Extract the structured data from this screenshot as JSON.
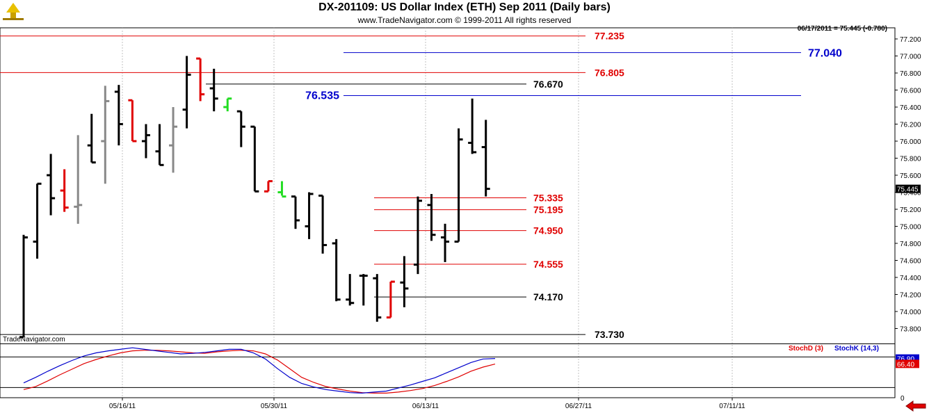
{
  "header": {
    "title": "DX-201109:  US Dollar Index (ETH) Sep 2011  (Daily bars)",
    "copyright": "www.TradeNavigator.com © 1999-2011 All rights reserved",
    "quote": "06/17/2011 = 75.445 (-0.780)"
  },
  "watermark": "TradeNavigator.com",
  "indicator_legend": {
    "stoch_d": "StochD (3)",
    "stoch_k": "StochK (14,3)"
  },
  "colors": {
    "bar_black": "#000000",
    "bar_red": "#e00000",
    "bar_green": "#22dd22",
    "bar_gray": "#888888",
    "level_red": "#e00000",
    "level_blue": "#0000cc",
    "level_black": "#000000",
    "stoch_d": "#e00000",
    "stoch_k": "#0000cc",
    "price_tag_bg": "#000000"
  },
  "chart_data": [
    {
      "type": "ohlc",
      "title": "DX-201109:  US Dollar Index (ETH) Sep 2011  (Daily bars)",
      "ylim": [
        73.6,
        77.3
      ],
      "y_ticks": [
        "77.200",
        "77.000",
        "76.800",
        "76.600",
        "76.400",
        "76.200",
        "76.000",
        "75.800",
        "75.600",
        "75.400",
        "75.200",
        "75.000",
        "74.800",
        "74.600",
        "74.400",
        "74.200",
        "74.000",
        "73.800"
      ],
      "x_tick_labels": [
        "05/16/11",
        "05/30/11",
        "06/13/11",
        "06/27/11",
        "07/11/11"
      ],
      "last_price_tag": "75.445",
      "bars": [
        {
          "o": 73.7,
          "h": 74.9,
          "l": 73.7,
          "c": 74.87,
          "color": "black"
        },
        {
          "o": 74.82,
          "h": 75.5,
          "l": 74.62,
          "c": 75.5,
          "color": "black"
        },
        {
          "o": 75.6,
          "h": 75.85,
          "l": 75.13,
          "c": 75.33,
          "color": "black"
        },
        {
          "o": 75.42,
          "h": 75.67,
          "l": 75.17,
          "c": 75.22,
          "color": "red"
        },
        {
          "o": 75.23,
          "h": 76.07,
          "l": 75.03,
          "c": 75.25,
          "color": "gray"
        },
        {
          "o": 75.95,
          "h": 76.32,
          "l": 75.75,
          "c": 75.75,
          "color": "black"
        },
        {
          "o": 76.0,
          "h": 76.65,
          "l": 75.5,
          "c": 76.47,
          "color": "gray"
        },
        {
          "o": 76.58,
          "h": 76.66,
          "l": 75.95,
          "c": 76.2,
          "color": "black"
        },
        {
          "o": 76.48,
          "h": 76.48,
          "l": 76.0,
          "c": 76.0,
          "color": "red"
        },
        {
          "o": 76.0,
          "h": 76.2,
          "l": 75.8,
          "c": 76.07,
          "color": "black"
        },
        {
          "o": 75.88,
          "h": 76.2,
          "l": 75.72,
          "c": 75.72,
          "color": "black"
        },
        {
          "o": 75.95,
          "h": 76.4,
          "l": 75.63,
          "c": 76.17,
          "color": "gray"
        },
        {
          "o": 76.37,
          "h": 77.0,
          "l": 76.15,
          "c": 76.78,
          "color": "black"
        },
        {
          "o": 76.97,
          "h": 76.97,
          "l": 76.47,
          "c": 76.55,
          "color": "red"
        },
        {
          "o": 76.62,
          "h": 76.85,
          "l": 76.35,
          "c": 76.5,
          "color": "black"
        },
        {
          "o": 76.4,
          "h": 76.5,
          "l": 76.35,
          "c": 76.5,
          "color": "green"
        },
        {
          "o": 76.35,
          "h": 76.35,
          "l": 75.93,
          "c": 76.17,
          "color": "black"
        },
        {
          "o": 76.17,
          "h": 76.17,
          "l": 75.41,
          "c": 75.41,
          "color": "black"
        },
        {
          "o": 75.41,
          "h": 75.53,
          "l": 75.41,
          "c": 75.53,
          "color": "red"
        },
        {
          "o": 75.4,
          "h": 75.53,
          "l": 75.36,
          "c": 75.35,
          "color": "green"
        },
        {
          "o": 75.35,
          "h": 75.35,
          "l": 74.97,
          "c": 75.07,
          "color": "black"
        },
        {
          "o": 75.0,
          "h": 75.4,
          "l": 74.85,
          "c": 75.38,
          "color": "black"
        },
        {
          "o": 75.36,
          "h": 75.36,
          "l": 74.68,
          "c": 74.78,
          "color": "black"
        },
        {
          "o": 74.8,
          "h": 74.85,
          "l": 74.12,
          "c": 74.14,
          "color": "black"
        },
        {
          "o": 74.14,
          "h": 74.44,
          "l": 74.07,
          "c": 74.1,
          "color": "black"
        },
        {
          "o": 74.42,
          "h": 74.44,
          "l": 74.07,
          "c": 74.42,
          "color": "black"
        },
        {
          "o": 74.39,
          "h": 74.44,
          "l": 73.88,
          "c": 73.93,
          "color": "black"
        },
        {
          "o": 73.93,
          "h": 74.35,
          "l": 73.93,
          "c": 74.35,
          "color": "red"
        },
        {
          "o": 74.34,
          "h": 74.65,
          "l": 74.05,
          "c": 74.27,
          "color": "black"
        },
        {
          "o": 74.55,
          "h": 75.35,
          "l": 74.44,
          "c": 75.3,
          "color": "black"
        },
        {
          "o": 75.25,
          "h": 75.38,
          "l": 74.83,
          "c": 74.9,
          "color": "black"
        },
        {
          "o": 74.87,
          "h": 75.03,
          "l": 74.58,
          "c": 74.82,
          "color": "black"
        },
        {
          "o": 74.82,
          "h": 76.15,
          "l": 74.82,
          "c": 76.02,
          "color": "black"
        },
        {
          "o": 75.98,
          "h": 76.5,
          "l": 75.85,
          "c": 75.87,
          "color": "black"
        },
        {
          "o": 75.93,
          "h": 76.25,
          "l": 75.35,
          "c": 75.44,
          "color": "black"
        }
      ],
      "levels": [
        {
          "value": 77.235,
          "label": "77.235",
          "color": "red",
          "x_from": "chart-start"
        },
        {
          "value": 77.04,
          "label": "77.040",
          "color": "blue",
          "x_from": "mid"
        },
        {
          "value": 76.805,
          "label": "76.805",
          "color": "red",
          "x_from": "chart-start"
        },
        {
          "value": 76.67,
          "label": "76.670",
          "color": "black",
          "x_from": "bar-13"
        },
        {
          "value": 76.535,
          "label": "76.535",
          "color": "blue",
          "x_from": "mid"
        },
        {
          "value": 75.335,
          "label": "75.335",
          "color": "red",
          "x_from": "bar-27"
        },
        {
          "value": 75.195,
          "label": "75.195",
          "color": "red",
          "x_from": "bar-27"
        },
        {
          "value": 74.95,
          "label": "74.950",
          "color": "red",
          "x_from": "bar-27"
        },
        {
          "value": 74.555,
          "label": "74.555",
          "color": "red",
          "x_from": "bar-27"
        },
        {
          "value": 74.17,
          "label": "74.170",
          "color": "black",
          "x_from": "bar-27"
        },
        {
          "value": 73.73,
          "label": "73.730",
          "color": "black",
          "x_from": "chart-start"
        }
      ]
    },
    {
      "type": "line",
      "title": "Stochastic",
      "ylim": [
        0,
        100
      ],
      "y_ticks": [
        "0"
      ],
      "reference_lines": [
        80,
        20
      ],
      "value_tags": {
        "stoch_k": "76.90",
        "stoch_d": "66.40"
      },
      "series": [
        {
          "name": "StochD (3)",
          "color": "red",
          "values": [
            16,
            22,
            33,
            45,
            56,
            67,
            75,
            82,
            88,
            92,
            93,
            93,
            92,
            90,
            88,
            87,
            90,
            92,
            93,
            92,
            86,
            74,
            57,
            40,
            30,
            22,
            17,
            13,
            10,
            9,
            9,
            11,
            14,
            18,
            24,
            32,
            41,
            52,
            60,
            66
          ]
        },
        {
          "name": "StochK (14,3)",
          "color": "blue",
          "values": [
            29,
            40,
            52,
            63,
            73,
            82,
            88,
            92,
            95,
            98,
            95,
            92,
            89,
            86,
            87,
            89,
            92,
            95,
            95,
            88,
            76,
            57,
            40,
            28,
            21,
            16,
            13,
            10,
            9,
            11,
            13,
            19,
            25,
            32,
            39,
            49,
            59,
            69,
            76,
            77
          ]
        }
      ]
    }
  ]
}
